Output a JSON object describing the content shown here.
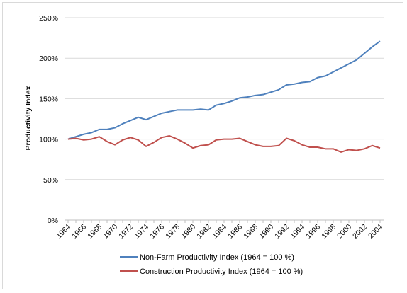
{
  "chart_data": {
    "type": "line",
    "title": "",
    "xlabel": "",
    "ylabel": "Productivity Index",
    "ylim": [
      0,
      2.5
    ],
    "y_tick_labels": [
      "0%",
      "50%",
      "100%",
      "150%",
      "200%",
      "250%"
    ],
    "y_tick_values": [
      0,
      0.5,
      1.0,
      1.5,
      2.0,
      2.5
    ],
    "x_tick_labels": [
      "1964",
      "1966",
      "1968",
      "1970",
      "1972",
      "1974",
      "1976",
      "1978",
      "1980",
      "1982",
      "1984",
      "1986",
      "1988",
      "1990",
      "1992",
      "1994",
      "1996",
      "1998",
      "2000",
      "2002",
      "2004"
    ],
    "grid": "horizontal",
    "legend_position": "bottom",
    "x": [
      1964,
      1965,
      1966,
      1967,
      1968,
      1969,
      1970,
      1971,
      1972,
      1973,
      1974,
      1975,
      1976,
      1977,
      1978,
      1979,
      1980,
      1981,
      1982,
      1983,
      1984,
      1985,
      1986,
      1987,
      1988,
      1989,
      1990,
      1991,
      1992,
      1993,
      1994,
      1995,
      1996,
      1997,
      1998,
      1999,
      2000,
      2001,
      2002,
      2003,
      2004
    ],
    "series": [
      {
        "name": "Non-Farm Productivity Index (1964 = 100 %)",
        "color": "#4f81bd",
        "values": [
          1.0,
          1.03,
          1.06,
          1.08,
          1.12,
          1.12,
          1.14,
          1.19,
          1.23,
          1.27,
          1.24,
          1.28,
          1.32,
          1.34,
          1.36,
          1.36,
          1.36,
          1.37,
          1.36,
          1.42,
          1.44,
          1.47,
          1.51,
          1.52,
          1.54,
          1.55,
          1.58,
          1.61,
          1.67,
          1.68,
          1.7,
          1.71,
          1.76,
          1.78,
          1.83,
          1.88,
          1.93,
          1.98,
          2.06,
          2.14,
          2.21
        ]
      },
      {
        "name": "Construction Productivity Index (1964 = 100 %)",
        "color": "#c0504d",
        "values": [
          1.0,
          1.01,
          0.99,
          1.0,
          1.03,
          0.97,
          0.93,
          0.99,
          1.02,
          0.99,
          0.91,
          0.96,
          1.02,
          1.04,
          1.0,
          0.95,
          0.89,
          0.92,
          0.93,
          0.99,
          1.0,
          1.0,
          1.01,
          0.97,
          0.93,
          0.91,
          0.91,
          0.92,
          1.01,
          0.98,
          0.93,
          0.9,
          0.9,
          0.88,
          0.88,
          0.84,
          0.87,
          0.86,
          0.88,
          0.92,
          0.89
        ]
      }
    ]
  }
}
